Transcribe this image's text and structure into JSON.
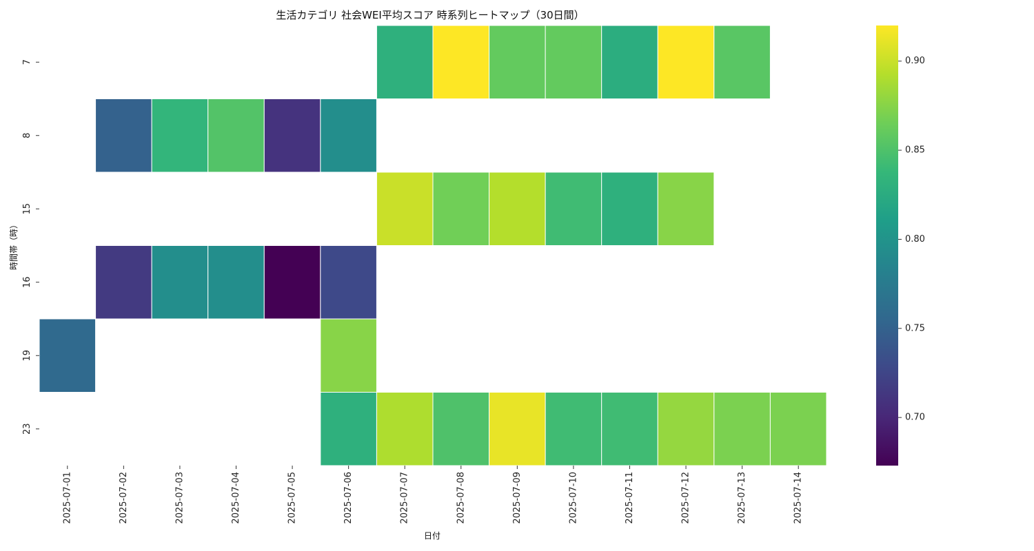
{
  "chart_data": {
    "type": "heatmap",
    "title": "生活カテゴリ 社会WEI平均スコア 時系列ヒートマップ（30日間）",
    "xlabel": "日付",
    "ylabel": "時間帯（時）",
    "x": [
      "2025-07-01",
      "2025-07-02",
      "2025-07-03",
      "2025-07-04",
      "2025-07-05",
      "2025-07-06",
      "2025-07-07",
      "2025-07-08",
      "2025-07-09",
      "2025-07-10",
      "2025-07-11",
      "2025-07-12",
      "2025-07-13",
      "2025-07-14"
    ],
    "y": [
      "7",
      "8",
      "15",
      "16",
      "19",
      "23"
    ],
    "values": [
      [
        null,
        null,
        null,
        null,
        null,
        null,
        0.83,
        0.92,
        0.86,
        0.86,
        0.827,
        0.92,
        0.855,
        null
      ],
      [
        null,
        0.75,
        0.835,
        0.852,
        0.71,
        0.795,
        null,
        null,
        null,
        null,
        null,
        null,
        null,
        null
      ],
      [
        null,
        null,
        null,
        null,
        null,
        null,
        0.9,
        0.866,
        0.892,
        0.843,
        0.83,
        0.875,
        null,
        null
      ],
      [
        null,
        0.715,
        0.795,
        0.795,
        0.673,
        0.728,
        null,
        null,
        null,
        null,
        null,
        null,
        null,
        null
      ],
      [
        0.757,
        null,
        null,
        null,
        null,
        0.875,
        null,
        null,
        null,
        null,
        null,
        null,
        null,
        null
      ],
      [
        null,
        null,
        null,
        null,
        null,
        0.83,
        0.89,
        0.85,
        0.912,
        0.843,
        0.843,
        0.88,
        0.87,
        0.87
      ]
    ],
    "colormap": "viridis",
    "colorbar": {
      "range": [
        0.673,
        0.92
      ],
      "ticks": [
        "0.70",
        "0.75",
        "0.80",
        "0.85",
        "0.90"
      ]
    }
  }
}
